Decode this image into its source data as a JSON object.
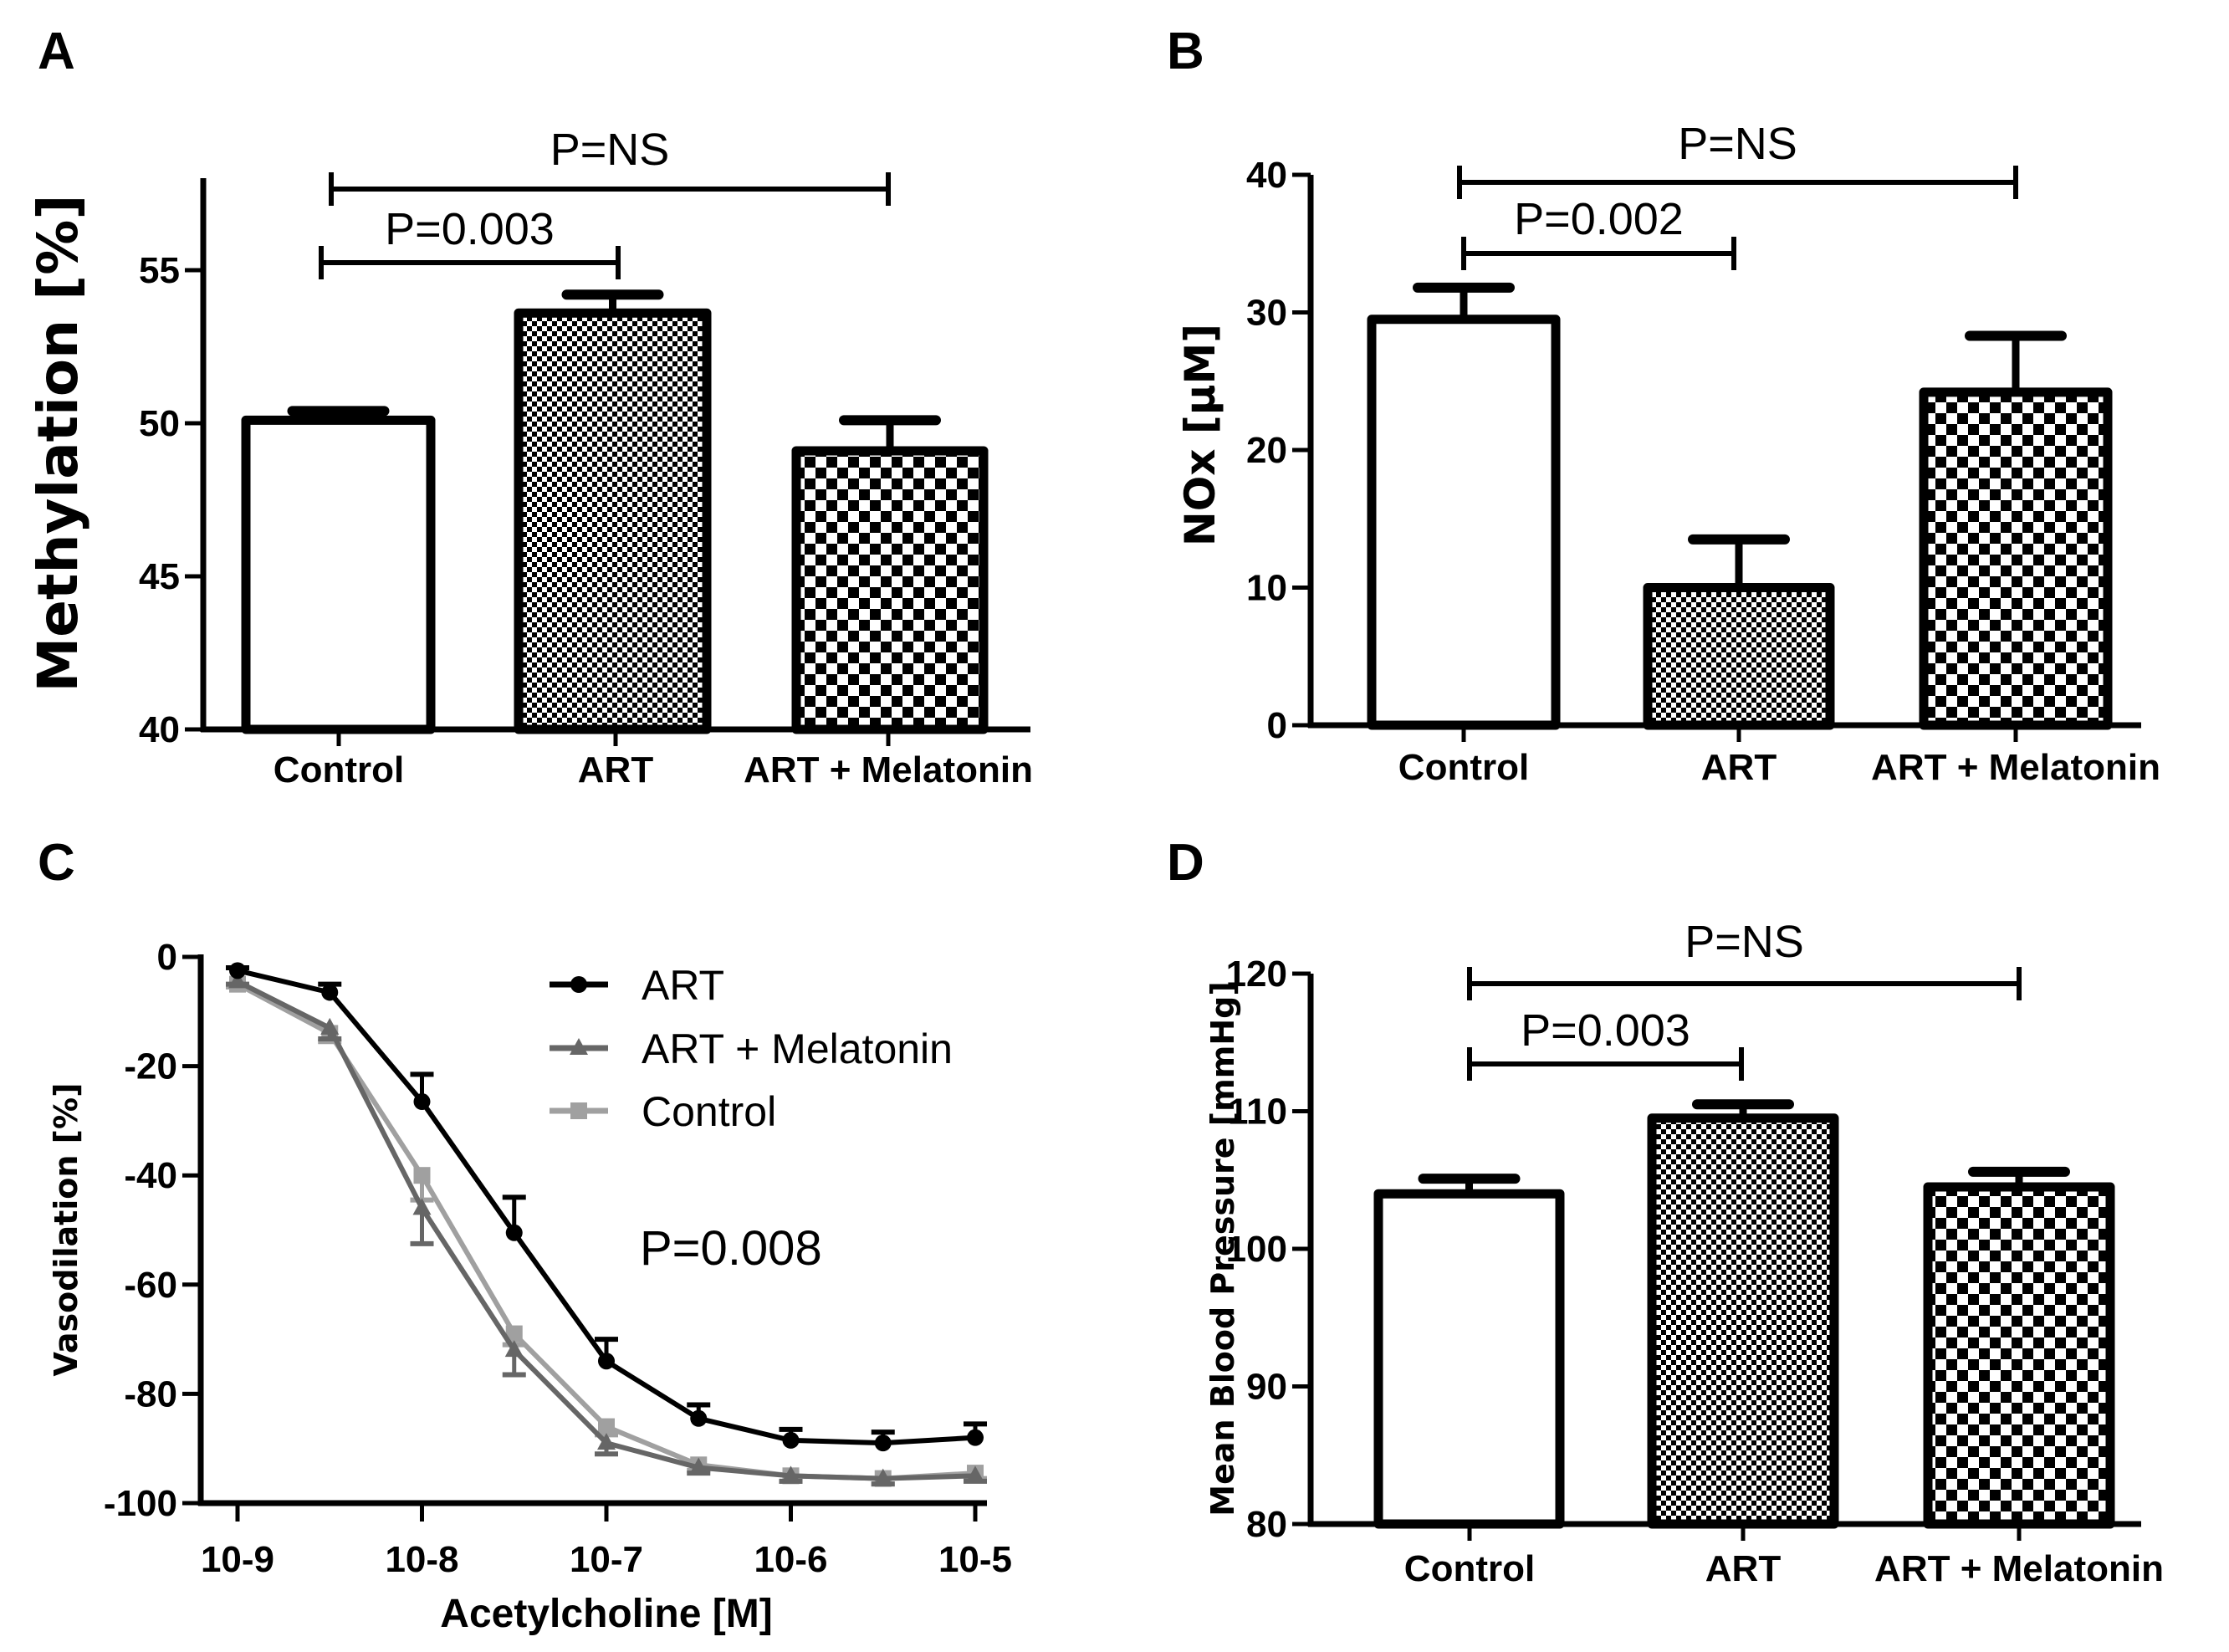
{
  "figure": {
    "colors": {
      "axis": "#000000",
      "art": "#000000",
      "art_melatonin": "#666666",
      "control_line": "#a0a0a0"
    }
  },
  "chart_data": [
    {
      "panel": "A",
      "type": "bar",
      "ylabel": "Methylation [%]",
      "xlabel": "",
      "ylim": [
        40,
        57
      ],
      "yticks": [
        40,
        45,
        50,
        55
      ],
      "categories": [
        "Control",
        "ART",
        "ART + Melatonin"
      ],
      "fills": [
        "white",
        "fine-checker",
        "coarse-checker"
      ],
      "values": [
        50.1,
        53.6,
        49.1
      ],
      "error_upper": [
        50.4,
        54.2,
        50.1
      ],
      "comparisons": [
        {
          "label": "P=0.003",
          "from": 0,
          "to": 1,
          "level": 1
        },
        {
          "label": "P=NS",
          "from": 0,
          "to": 2,
          "level": 2
        }
      ]
    },
    {
      "panel": "B",
      "type": "bar",
      "ylabel": "NOx [μM]",
      "xlabel": "",
      "ylim": [
        0,
        40
      ],
      "yticks": [
        0,
        10,
        20,
        30,
        40
      ],
      "categories": [
        "Control",
        "ART",
        "ART + Melatonin"
      ],
      "fills": [
        "white",
        "fine-checker",
        "coarse-checker"
      ],
      "values": [
        29.5,
        10.0,
        24.2
      ],
      "error_upper": [
        31.8,
        13.5,
        28.3
      ],
      "comparisons": [
        {
          "label": "P=0.002",
          "from": 0,
          "to": 1,
          "level": 1
        },
        {
          "label": "P=NS",
          "from": 0,
          "to": 2,
          "level": 2
        }
      ]
    },
    {
      "panel": "C",
      "type": "line",
      "ylabel": "Vasodilation [%]",
      "xlabel": "Acetylcholine [M]",
      "xscale": "log10",
      "xlim": [
        -9.25,
        -4.85
      ],
      "ylim": [
        -100,
        0
      ],
      "yticks": [
        0,
        -20,
        -40,
        -60,
        -80,
        -100
      ],
      "xticks": [
        -9,
        -8,
        -7,
        -6,
        -5
      ],
      "xtick_labels": [
        "10-9",
        "10-8",
        "10-7",
        "10-6",
        "10-5"
      ],
      "x": [
        -9,
        -8.5,
        -8,
        -7.5,
        -7,
        -6.5,
        -6,
        -5.5,
        -5
      ],
      "series": [
        {
          "name": "ART",
          "marker": "circle",
          "color_key": "art",
          "values": [
            -2.5,
            -6.5,
            -26.5,
            -50.5,
            -74,
            -84.5,
            -88.5,
            -89,
            -88
          ],
          "error": [
            0.5,
            1.5,
            5,
            6.5,
            4,
            2.5,
            2,
            2,
            2.5
          ]
        },
        {
          "name": "ART + Melatonin",
          "marker": "triangle",
          "color_key": "art_melatonin",
          "values": [
            -4.5,
            -13,
            -46,
            -72,
            -89,
            -93.5,
            -95,
            -95.5,
            -95
          ],
          "error": [
            0.5,
            2,
            6.5,
            4.5,
            2,
            1,
            1,
            1,
            1
          ]
        },
        {
          "name": "Control",
          "marker": "square",
          "color_key": "control_line",
          "values": [
            -5,
            -14,
            -40,
            -69,
            -86,
            -93,
            -95,
            -95.5,
            -94.5
          ],
          "error": [
            0.5,
            1.5,
            4.5,
            2,
            1.5,
            1,
            1,
            1,
            1
          ]
        }
      ],
      "legend_position": "top-right",
      "annotations": [
        {
          "label": "P=0.008"
        }
      ]
    },
    {
      "panel": "D",
      "type": "bar",
      "ylabel": "Mean Blood Pressure [mmHg]",
      "xlabel": "",
      "ylim": [
        80,
        120
      ],
      "yticks": [
        80,
        90,
        100,
        110,
        120
      ],
      "categories": [
        "Control",
        "ART",
        "ART + Melatonin"
      ],
      "fills": [
        "white",
        "fine-checker",
        "coarse-checker"
      ],
      "values": [
        104.0,
        109.5,
        104.5
      ],
      "error_upper": [
        105.1,
        110.5,
        105.6
      ],
      "comparisons": [
        {
          "label": "P=0.003",
          "from": 0,
          "to": 1,
          "level": 1
        },
        {
          "label": "P=NS",
          "from": 0,
          "to": 2,
          "level": 2
        }
      ]
    }
  ]
}
